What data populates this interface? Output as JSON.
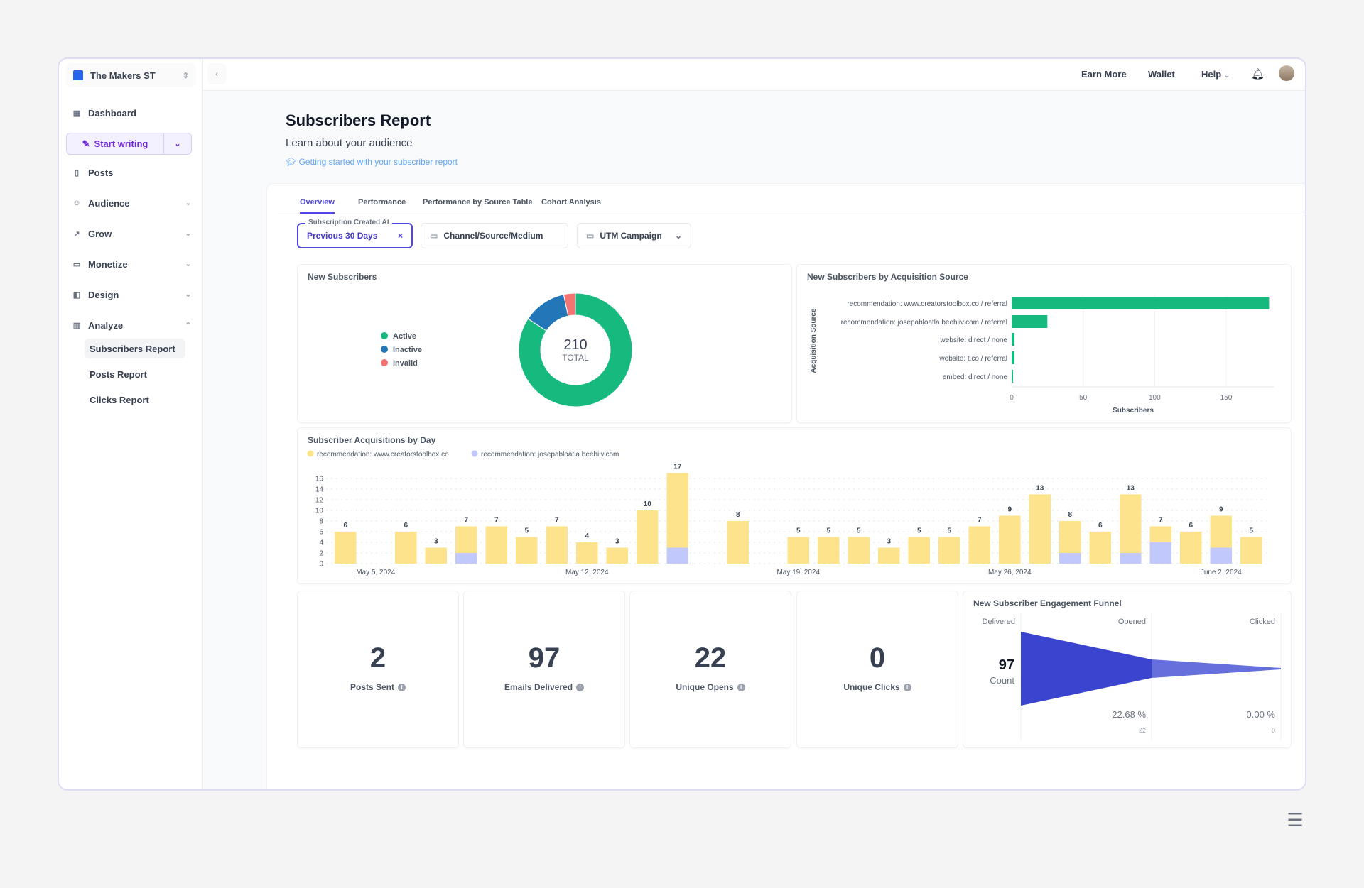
{
  "sidebar": {
    "publication": "The Makers ST",
    "dashboard": "Dashboard",
    "start_writing": "Start writing",
    "items": [
      {
        "label": "Posts"
      },
      {
        "label": "Audience"
      },
      {
        "label": "Grow"
      },
      {
        "label": "Monetize"
      },
      {
        "label": "Design"
      },
      {
        "label": "Analyze"
      }
    ],
    "analyze_sub": [
      "Subscribers Report",
      "Posts Report",
      "Clicks Report"
    ]
  },
  "topbar": {
    "earn_more": "Earn More",
    "wallet": "Wallet",
    "help": "Help"
  },
  "page": {
    "title": "Subscribers Report",
    "subtitle": "Learn about your audience",
    "help_link": "Getting started with your subscriber report"
  },
  "tabs": [
    "Overview",
    "Performance",
    "Performance by Source Table",
    "Cohort Analysis"
  ],
  "filters": {
    "date_label": "Subscription Created At",
    "date_value": "Previous 30 Days",
    "channel": "Channel/Source/Medium",
    "utm": "UTM Campaign"
  },
  "stats": [
    {
      "value": "2",
      "label": "Posts Sent"
    },
    {
      "value": "97",
      "label": "Emails Delivered"
    },
    {
      "value": "22",
      "label": "Unique Opens"
    },
    {
      "value": "0",
      "label": "Unique Clicks"
    }
  ],
  "colors": {
    "active": "#16b97e",
    "inactive": "#2377b8",
    "invalid": "#f47373",
    "source1": "#fde38c",
    "source2": "#c1c8fb",
    "funnel": "#3a44cf",
    "funnel2": "#6570dc",
    "hbar": "#16b97e"
  },
  "chart_data": [
    {
      "type": "pie",
      "title": "New Subscribers",
      "center_value": "210",
      "center_label": "TOTAL",
      "labels": [
        "Active",
        "Inactive",
        "Invalid"
      ],
      "values": [
        177,
        26,
        7
      ]
    },
    {
      "type": "bar",
      "orientation": "horizontal",
      "title": "New Subscribers by Acquisition Source",
      "ylabel": "Acquisition Source",
      "xlabel": "Subscribers",
      "categories": [
        "recommendation: www.creatorstoolbox.co / referral",
        "recommendation: josepabloatla.beehiiv.com / referral",
        "website: direct / none",
        "website: t.co / referral",
        "embed: direct / none"
      ],
      "values": [
        180,
        25,
        2,
        2,
        1
      ],
      "xticks": [
        0,
        50,
        100,
        150
      ],
      "xlim": [
        0,
        185
      ]
    },
    {
      "type": "bar",
      "stacked": true,
      "title": "Subscriber Acquisitions by Day",
      "yticks": [
        0,
        2,
        4,
        6,
        8,
        10,
        12,
        14,
        16
      ],
      "ylim": [
        0,
        16
      ],
      "x_tick_labels": [
        {
          "index": 1,
          "label": "May 5, 2024"
        },
        {
          "index": 8,
          "label": "May 12, 2024"
        },
        {
          "index": 15,
          "label": "May 19, 2024"
        },
        {
          "index": 22,
          "label": "May 26, 2024"
        },
        {
          "index": 29,
          "label": "June 2, 2024"
        }
      ],
      "categories": [
        "May 4",
        "May 5",
        "May 6",
        "May 7",
        "May 8",
        "May 9",
        "May 10",
        "May 11",
        "May 12",
        "May 13",
        "May 14",
        "May 15",
        "May 16",
        "May 17",
        "May 18",
        "May 19",
        "May 20",
        "May 21",
        "May 22",
        "May 23",
        "May 24",
        "May 25",
        "May 26",
        "May 27",
        "May 28",
        "May 29",
        "May 30",
        "May 31",
        "Jun 1",
        "Jun 2",
        "Jun 3"
      ],
      "series": [
        {
          "name": "recommendation: www.creatorstoolbox.co",
          "values": [
            6,
            0,
            6,
            3,
            5,
            7,
            5,
            7,
            4,
            3,
            10,
            14,
            0,
            8,
            0,
            5,
            5,
            5,
            3,
            5,
            5,
            7,
            9,
            13,
            6,
            6,
            11,
            3,
            6,
            6,
            5
          ]
        },
        {
          "name": "recommendation: josepabloatla.beehiiv.com",
          "values": [
            0,
            0,
            0,
            0,
            2,
            0,
            0,
            0,
            0,
            0,
            0,
            3,
            0,
            0,
            0,
            0,
            0,
            0,
            0,
            0,
            0,
            0,
            0,
            0,
            2,
            0,
            2,
            4,
            0,
            3,
            0
          ]
        }
      ]
    },
    {
      "type": "funnel",
      "title": "New Subscriber Engagement Funnel",
      "stages": [
        "Delivered",
        "Opened",
        "Clicked"
      ],
      "values": [
        97,
        22,
        0
      ],
      "percents": [
        "22.68 %",
        "0.00 %"
      ],
      "count_value": "97",
      "count_label": "Count"
    }
  ]
}
